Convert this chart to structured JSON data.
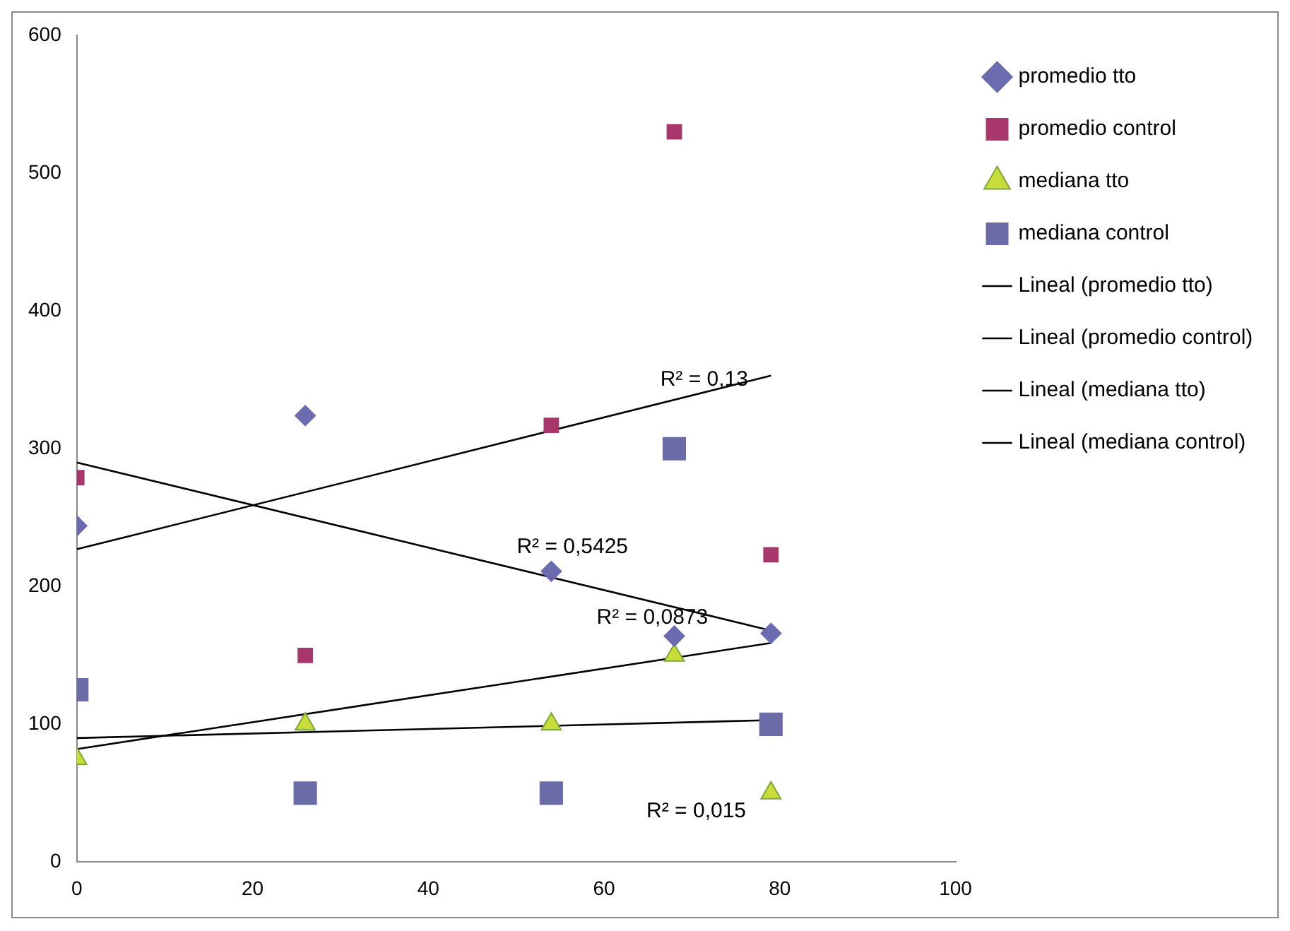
{
  "chart_data": {
    "type": "scatter",
    "xlim": [
      0,
      100
    ],
    "xticks": [
      0,
      20,
      40,
      60,
      80,
      100
    ],
    "ylim": [
      0,
      600
    ],
    "yticks": [
      0,
      100,
      200,
      300,
      400,
      500,
      600
    ],
    "grid": false,
    "legend": "right",
    "series": [
      {
        "name": "promedio tto",
        "color": "#6b6bb0",
        "marker": "diamond",
        "x": [
          0,
          26,
          54,
          68,
          79
        ],
        "values": [
          244,
          324,
          211,
          164,
          166
        ]
      },
      {
        "name": "promedio control",
        "color": "#a8386b",
        "marker": "square",
        "x": [
          0,
          26,
          54,
          68,
          79
        ],
        "values": [
          279,
          150,
          317,
          530,
          223
        ]
      },
      {
        "name": "mediana tto",
        "color": "#c8dc3a",
        "marker": "triangle",
        "x": [
          0,
          26,
          54,
          68,
          79
        ],
        "values": [
          75,
          100,
          100,
          150,
          50
        ]
      },
      {
        "name": "mediana control",
        "color": "#6b6ba8",
        "marker": "square",
        "x": [
          0,
          26,
          54,
          68,
          79
        ],
        "values": [
          125,
          50,
          50,
          300,
          100
        ]
      },
      {
        "name": "Lineal (promedio tto)",
        "type": "line",
        "color": "#000000",
        "marker": "none",
        "x": [
          0,
          79
        ],
        "values": [
          290,
          168
        ]
      },
      {
        "name": "Lineal (promedio control)",
        "type": "line",
        "color": "#000000",
        "marker": "none",
        "x": [
          0,
          79
        ],
        "values": [
          227,
          353
        ]
      },
      {
        "name": "Lineal (mediana tto)",
        "type": "line",
        "color": "#000000",
        "marker": "none",
        "x": [
          0,
          79
        ],
        "values": [
          82,
          159
        ]
      },
      {
        "name": "Lineal (mediana control)",
        "type": "line",
        "color": "#000000",
        "marker": "none",
        "x": [
          0,
          79
        ],
        "values": [
          90,
          103
        ]
      }
    ],
    "annotations": [
      "R² = 0,13",
      "R² = 0,5425",
      "R² = 0,0873",
      "R² = 0,015"
    ]
  }
}
